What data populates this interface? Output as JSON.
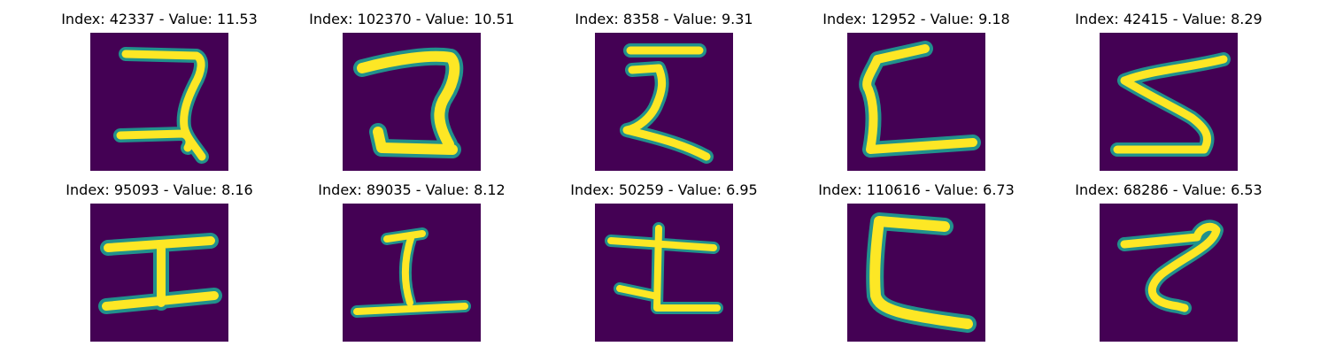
{
  "colors": {
    "background_dark": "#440154",
    "stroke_mid": "#21918c",
    "stroke_bright": "#fde725"
  },
  "panels": [
    {
      "index": "42337",
      "value": "11.53",
      "title": "Index: 42337 - Value: 11.53"
    },
    {
      "index": "102370",
      "value": "10.51",
      "title": "Index: 102370 - Value: 10.51"
    },
    {
      "index": "8358",
      "value": "9.31",
      "title": "Index: 8358 - Value: 9.31"
    },
    {
      "index": "12952",
      "value": "9.18",
      "title": "Index: 12952 - Value: 9.18"
    },
    {
      "index": "42415",
      "value": "8.29",
      "title": "Index: 42415 - Value: 8.29"
    },
    {
      "index": "95093",
      "value": "8.16",
      "title": "Index: 95093 - Value: 8.16"
    },
    {
      "index": "89035",
      "value": "8.12",
      "title": "Index: 89035 - Value: 8.12"
    },
    {
      "index": "50259",
      "value": "6.95",
      "title": "Index: 50259 - Value: 6.95"
    },
    {
      "index": "110616",
      "value": "6.73",
      "title": "Index: 110616 - Value: 6.73"
    },
    {
      "index": "68286",
      "value": "6.53",
      "title": "Index: 68286 - Value: 6.53"
    }
  ]
}
